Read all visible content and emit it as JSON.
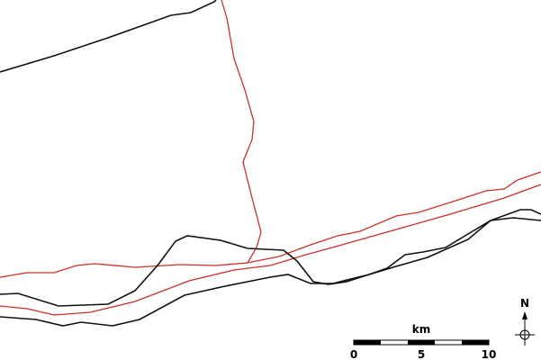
{
  "scale_bar": {
    "unit": "km",
    "labels": [
      "0",
      "5",
      "10"
    ]
  },
  "north_arrow": {
    "label": "N"
  }
}
